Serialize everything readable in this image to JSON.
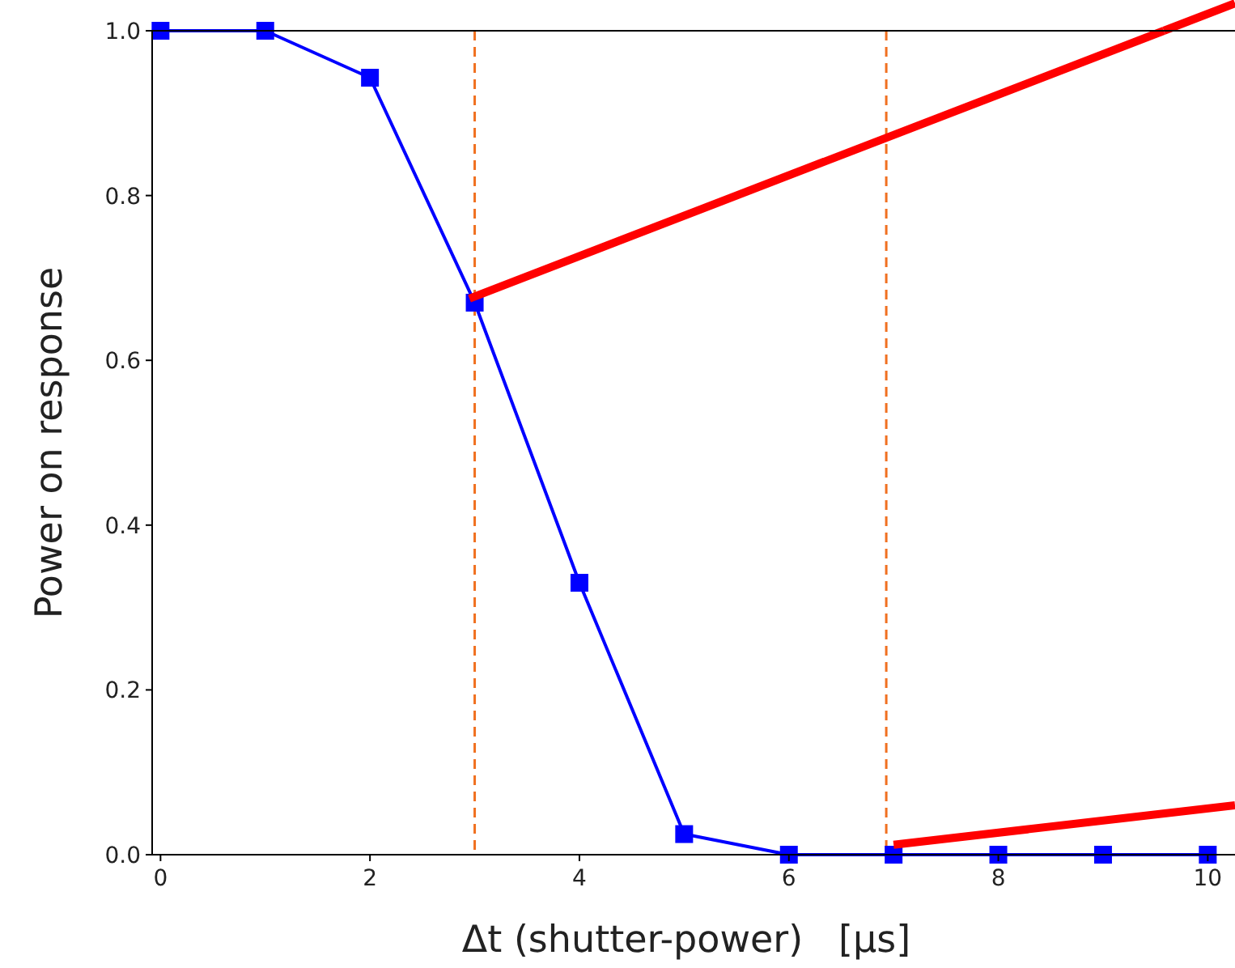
{
  "chart_data": {
    "type": "line",
    "xlabel": "Δt (shutter-power)   [μs]",
    "ylabel": "Power on response",
    "x": [
      0,
      1,
      2,
      3,
      4,
      5,
      6,
      7,
      8,
      9,
      10
    ],
    "series": [
      {
        "color": "#0000ff",
        "values": [
          1.0,
          1.0,
          0.943,
          0.67,
          0.33,
          0.025,
          0.0,
          0.0,
          0.0,
          0.0,
          0.0
        ]
      },
      {
        "color": "#ff0000",
        "x": [
          2.95,
          9.58
        ],
        "values": [
          0.675,
          1.0
        ],
        "marker": "none"
      },
      {
        "color": "#ff0000",
        "x": [
          7.0,
          10.26
        ],
        "values": [
          0.012,
          0.06
        ],
        "marker": "none"
      }
    ],
    "xlim": [
      -0.08,
      10.26
    ],
    "ylim": [
      0,
      1
    ],
    "xticks": [
      0,
      2,
      4,
      6,
      8,
      10
    ],
    "yticks": [
      {
        "value": 0,
        "label": "0.0"
      },
      {
        "value": 0.2,
        "label": "0.2"
      },
      {
        "value": 0.4,
        "label": "0.4"
      },
      {
        "value": 0.6,
        "label": "0.6"
      },
      {
        "value": 0.8,
        "label": "0.8"
      },
      {
        "value": 1,
        "label": "1.0"
      }
    ],
    "ref_lines": [
      {
        "axis": "x",
        "value": 3,
        "color": "#f07020",
        "line_style": "dashed"
      },
      {
        "axis": "x",
        "value": 6.93,
        "color": "#f07020",
        "line_style": "dashed"
      }
    ],
    "marker": "square",
    "line_style": "solid"
  }
}
